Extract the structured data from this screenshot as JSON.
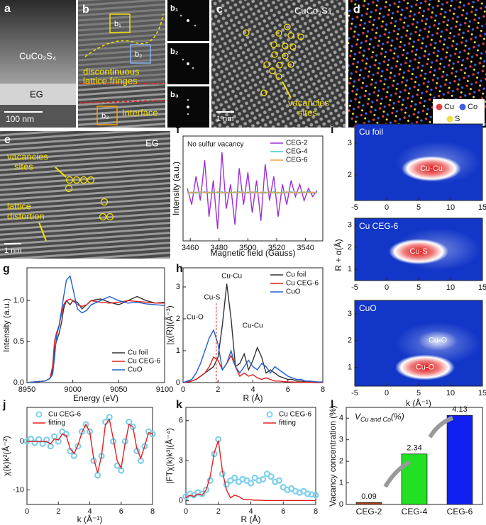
{
  "images": {
    "a": {
      "label": "a",
      "material": "CuCo₂S₄",
      "substrate": "EG",
      "scale": "100 nm"
    },
    "b": {
      "label": "b",
      "boxes": [
        "b₁",
        "b₂",
        "b₃"
      ],
      "note": "discontinuous",
      "note2": "lattice fringes",
      "interface": "Interface"
    },
    "c": {
      "label": "c",
      "material": "CuCo₂S₄",
      "note": "vacancies",
      "note2": "sites",
      "scale": "1 nm"
    },
    "d": {
      "label": "d",
      "legend": [
        "Cu",
        "Co",
        "S"
      ]
    },
    "e": {
      "label": "e",
      "substrate": "EG",
      "note": "vacancies",
      "note2": "sites",
      "note3": "lattice",
      "note4": "distortion",
      "scale": "1 nm"
    }
  },
  "chart_data": [
    {
      "type": "line",
      "label": "f",
      "annotation": "No sulfur vacancy",
      "xlabel": "Magnetic field (Gauss)",
      "ylabel": "Intensity (a.u.)",
      "legend": "upper right",
      "xlim": [
        3455,
        3552
      ],
      "xticks": [
        3460,
        3480,
        3500,
        3520,
        3540
      ],
      "ylim": [
        -1.2,
        1.4
      ],
      "x": [
        3458,
        3461,
        3464,
        3467,
        3470,
        3473,
        3476,
        3479,
        3482,
        3485,
        3488,
        3491,
        3494,
        3497,
        3500,
        3503,
        3506,
        3509,
        3512,
        3515,
        3518,
        3521,
        3524,
        3527,
        3530,
        3533,
        3536,
        3539,
        3542,
        3545,
        3548
      ],
      "series": [
        {
          "name": "CEG-2",
          "color": "#9b30d9",
          "values": [
            0.1,
            -0.3,
            0.4,
            -0.2,
            0.8,
            -0.6,
            0.3,
            -0.9,
            1.0,
            -0.4,
            0.2,
            -0.8,
            0.6,
            -0.3,
            0.5,
            -0.5,
            0.3,
            -0.7,
            0.7,
            -0.2,
            0.4,
            -0.6,
            0.2,
            -0.3,
            0.3,
            -0.1,
            0.2,
            -0.2,
            0.1,
            -0.1,
            0.05
          ]
        },
        {
          "name": "CEG-4",
          "color": "#3fc9d9",
          "values": [
            0.02,
            -0.02,
            0.01,
            -0.01,
            0.02,
            -0.02,
            0.01,
            -0.01,
            0.02,
            -0.02,
            0.01,
            -0.01,
            0.02,
            -0.02,
            0.01,
            -0.01,
            0.02,
            -0.02,
            0.01,
            -0.01,
            0.02,
            -0.02,
            0.01,
            -0.01,
            0.02,
            -0.02,
            0.01,
            -0.01,
            0.02,
            -0.02,
            0.01
          ]
        },
        {
          "name": "CEG-6",
          "color": "#f0a040",
          "values": [
            -0.01,
            0.01,
            -0.02,
            0.02,
            -0.01,
            0.01,
            -0.02,
            0.02,
            -0.01,
            0.01,
            -0.02,
            0.02,
            -0.01,
            0.01,
            -0.02,
            0.02,
            -0.01,
            0.01,
            -0.02,
            0.02,
            -0.01,
            0.01,
            -0.02,
            0.02,
            -0.01,
            0.01,
            -0.02,
            0.02,
            -0.01,
            0.01,
            -0.02
          ]
        }
      ]
    },
    {
      "type": "line",
      "label": "g",
      "xlabel": "Energy (eV)",
      "ylabel": "Intensity (a.u.)",
      "legend": "lower right",
      "xlim": [
        8950,
        9100
      ],
      "xticks": [
        8950,
        9000,
        9050,
        9100
      ],
      "ylim": [
        0,
        1.4
      ],
      "yticks": [
        {
          "value": 0,
          "label": "0.0"
        },
        {
          "value": 0.5,
          "label": "0.5"
        },
        {
          "value": 1,
          "label": "1.0"
        }
      ],
      "x": [
        8950,
        8970,
        8975,
        8978,
        8980,
        8982,
        8985,
        8988,
        8990,
        8993,
        8997,
        9000,
        9005,
        9010,
        9015,
        9020,
        9030,
        9040,
        9050,
        9060,
        9070,
        9080,
        9090,
        9100
      ],
      "series": [
        {
          "name": "Cu foil",
          "color": "#333333",
          "values": [
            0,
            0.02,
            0.05,
            0.15,
            0.4,
            0.5,
            0.6,
            0.75,
            0.9,
            1.0,
            0.95,
            1.0,
            0.98,
            0.9,
            0.95,
            1.0,
            1.02,
            0.98,
            0.95,
            1.0,
            1.05,
            1.0,
            0.97,
            0.98
          ]
        },
        {
          "name": "Cu CEG-6",
          "color": "#e02020",
          "values": [
            0,
            0.02,
            0.05,
            0.2,
            0.5,
            0.6,
            0.7,
            0.85,
            0.95,
            1.0,
            1.02,
            1.0,
            0.95,
            0.93,
            0.95,
            1.0,
            0.98,
            0.97,
            0.98,
            1.0,
            0.99,
            0.98,
            0.97,
            0.97
          ]
        },
        {
          "name": "CuO",
          "color": "#2060d0",
          "values": [
            0,
            0.02,
            0.05,
            0.1,
            0.3,
            0.55,
            0.7,
            0.9,
            1.05,
            1.25,
            1.3,
            1.15,
            0.9,
            0.85,
            0.88,
            0.95,
            1.0,
            1.05,
            1.0,
            0.97,
            0.98,
            0.96,
            0.95,
            0.94
          ]
        }
      ]
    },
    {
      "type": "line",
      "label": "h",
      "xlabel": "R (Å)",
      "ylabel": "|χ(R)|(Å⁻³)",
      "legend": "upper right",
      "annotations": [
        "Cu-Cu",
        "Cu-S",
        "Cu-O",
        "Cu-Cu"
      ],
      "xlim": [
        0,
        8
      ],
      "xticks": [
        0,
        2,
        4,
        6,
        8
      ],
      "ylim": [
        0,
        3.6
      ],
      "yticks": [
        0,
        1,
        2,
        3
      ],
      "x": [
        0,
        0.25,
        0.5,
        0.75,
        1,
        1.25,
        1.5,
        1.75,
        2,
        2.25,
        2.5,
        2.75,
        3,
        3.25,
        3.5,
        3.75,
        4,
        4.25,
        4.5,
        4.75,
        5,
        5.25,
        5.5,
        5.75,
        6,
        6.25,
        6.5,
        6.75,
        7,
        7.25,
        7.5,
        7.75,
        8
      ],
      "series": [
        {
          "name": "Cu foil",
          "color": "#333333",
          "values": [
            0,
            0.02,
            0.05,
            0.1,
            0.2,
            0.3,
            0.4,
            0.5,
            0.8,
            1.8,
            3.1,
            2.0,
            0.5,
            0.6,
            0.9,
            0.4,
            0.7,
            1.1,
            0.8,
            0.3,
            0.4,
            0.3,
            0.2,
            0.15,
            0.1,
            0.1,
            0.05,
            0.05,
            0.03,
            0.02,
            0.02,
            0.01,
            0.01
          ]
        },
        {
          "name": "Cu CEG-6",
          "color": "#e02020",
          "values": [
            0,
            0.02,
            0.05,
            0.1,
            0.2,
            0.3,
            0.5,
            0.8,
            0.7,
            0.4,
            0.6,
            0.85,
            0.5,
            0.2,
            0.3,
            0.2,
            0.25,
            0.15,
            0.1,
            0.15,
            0.1,
            0.05,
            0.05,
            0.03,
            0.02,
            0.02,
            0.01,
            0.01,
            0.01,
            0.01,
            0,
            0,
            0
          ]
        },
        {
          "name": "CuO",
          "color": "#2060d0",
          "values": [
            0,
            0.05,
            0.1,
            0.3,
            0.6,
            1.0,
            1.4,
            1.65,
            1.2,
            0.4,
            0.6,
            1.0,
            0.5,
            0.3,
            0.5,
            0.7,
            0.5,
            0.4,
            0.6,
            0.5,
            0.3,
            0.5,
            0.4,
            0.3,
            0.2,
            0.15,
            0.1,
            0.1,
            0.05,
            0.05,
            0.03,
            0.02,
            0.02
          ]
        }
      ]
    },
    {
      "type": "contour",
      "label": "i",
      "xlabel": "k (Å⁻¹)",
      "ylabel": "R + α(Å)",
      "xlim": [
        -5,
        15
      ],
      "xticks": [
        -5,
        0,
        5,
        10,
        15
      ],
      "subplots": [
        {
          "title": "Cu foil",
          "ylim": [
            1.2,
            3.6
          ],
          "yticks": [
            2,
            3
          ],
          "peaks": [
            {
              "label": "Cu-Cu",
              "x": 7,
              "y": 2.2
            }
          ]
        },
        {
          "title": "Cu CEG-6",
          "ylim": [
            0.5,
            3.3
          ],
          "yticks": [
            1,
            2,
            3
          ],
          "peaks": [
            {
              "label": "Cu-S",
              "x": 5,
              "y": 1.8
            }
          ]
        },
        {
          "title": "CuO",
          "ylim": [
            0.3,
            3.5
          ],
          "yticks": [
            1,
            2,
            3
          ],
          "peaks": [
            {
              "label": "Cu-O",
              "x": 8,
              "y": 2.0
            },
            {
              "label": "Cu-O",
              "x": 6,
              "y": 1.0
            }
          ]
        }
      ]
    },
    {
      "type": "line",
      "label": "j",
      "xlabel": "k (Å⁻¹)",
      "ylabel": "χ(k)k²(Å⁻²)",
      "legend": "upper left",
      "xlim": [
        0,
        8
      ],
      "xticks": [
        0,
        2,
        4,
        6,
        8
      ],
      "ylim": [
        -13,
        7
      ],
      "yticks": [
        -10,
        0
      ],
      "x": [
        0,
        0.25,
        0.5,
        0.75,
        1,
        1.25,
        1.5,
        1.75,
        2,
        2.25,
        2.5,
        2.75,
        3,
        3.25,
        3.5,
        3.75,
        4,
        4.25,
        4.5,
        4.75,
        5,
        5.25,
        5.5,
        5.75,
        6,
        6.25,
        6.5,
        6.75,
        7,
        7.25,
        7.5,
        7.75,
        8
      ],
      "series": [
        {
          "name": "Cu CEG-6",
          "color": "#7fd0ec",
          "marker": "circle",
          "values": [
            0,
            0.5,
            -0.3,
            0.4,
            -0.5,
            0.3,
            -1,
            1,
            0,
            2,
            1.5,
            -2,
            -3,
            -1,
            2,
            3.5,
            2,
            -4,
            -7,
            -3,
            4,
            5,
            0,
            -5,
            -6,
            0,
            4,
            3,
            -2,
            -4,
            -1,
            2,
            1.5
          ]
        },
        {
          "name": "fitting",
          "color": "#e02020",
          "values": [
            0,
            0,
            0,
            0,
            0,
            0,
            -0.5,
            0.5,
            0.3,
            1.5,
            1.2,
            -1.5,
            -2.5,
            -0.8,
            1.8,
            3.5,
            2,
            -3.5,
            -6.5,
            -3,
            3.5,
            4.5,
            0.5,
            -4,
            -5.5,
            -0.5,
            3.5,
            3,
            -1.5,
            -3.5,
            -1,
            1.8,
            1.5
          ]
        }
      ]
    },
    {
      "type": "line",
      "label": "k",
      "xlabel": "R (Å)",
      "ylabel": "|FTχ(k)k³|(Å⁻⁴)",
      "legend": "upper right",
      "xlim": [
        0,
        8
      ],
      "xticks": [
        0,
        2,
        4,
        6,
        8
      ],
      "ylim": [
        -0.3,
        7
      ],
      "yticks": [
        0,
        3,
        6
      ],
      "x": [
        0,
        0.25,
        0.5,
        0.75,
        1,
        1.25,
        1.5,
        1.75,
        2,
        2.25,
        2.5,
        2.75,
        3,
        3.25,
        3.5,
        3.75,
        4,
        4.25,
        4.5,
        4.75,
        5,
        5.25,
        5.5,
        5.75,
        6,
        6.25,
        6.5,
        6.75,
        7,
        7.25,
        7.5,
        7.75,
        8
      ],
      "series": [
        {
          "name": "Cu CEG-6",
          "color": "#7fd0ec",
          "marker": "circle",
          "values": [
            0.3,
            0.5,
            0.4,
            0.6,
            0.5,
            0.8,
            1.5,
            3.5,
            4.6,
            2,
            1.2,
            1.5,
            1.7,
            1.4,
            1.6,
            1.5,
            1.3,
            1.7,
            1.5,
            1.6,
            2.0,
            1.8,
            1.4,
            1.5,
            1.0,
            0.8,
            0.9,
            0.7,
            0.6,
            0.7,
            0.5,
            0.45,
            0.4
          ]
        },
        {
          "name": "fitting",
          "color": "#e02020",
          "values": [
            0.2,
            0.4,
            0.3,
            0.5,
            0.4,
            0.8,
            1.8,
            3.6,
            4.5,
            2.2,
            0.8,
            0.2,
            0.4,
            0.3,
            0.1,
            0.05,
            0.05,
            0.02,
            0.02,
            0.01,
            0,
            0,
            0,
            0,
            0,
            0,
            0,
            0,
            0,
            0,
            0,
            0,
            0
          ]
        }
      ]
    },
    {
      "type": "bar",
      "label": "l",
      "ylabel": "Vacancy concentration (%)",
      "annotation": {
        "symbol": "V",
        "subscript": "Cu and Co",
        "suffix": "(%)"
      },
      "categories": [
        "CEG-2",
        "CEG-4",
        "CEG-6"
      ],
      "values": [
        0.09,
        2.34,
        4.13
      ],
      "colors": [
        "#b0401a",
        "#22e022",
        "#1020f0"
      ],
      "ylim": [
        0,
        4.5
      ],
      "yticks": [
        0,
        1,
        2,
        3,
        4
      ]
    }
  ]
}
